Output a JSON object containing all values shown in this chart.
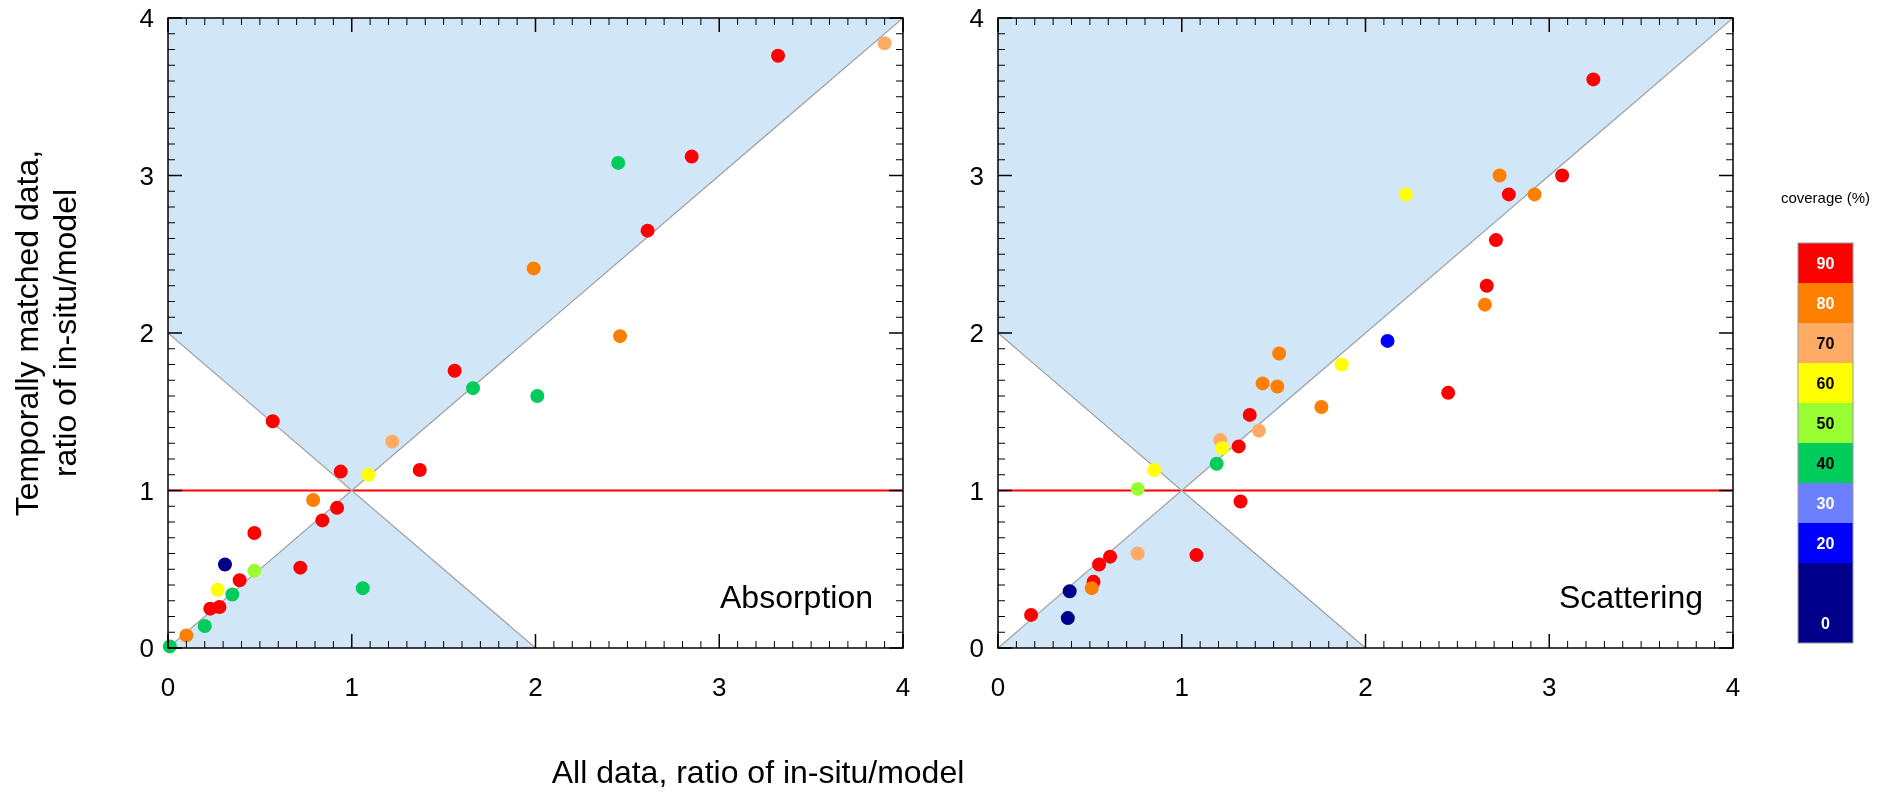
{
  "chart_data": [
    {
      "type": "scatter",
      "xlabel": "All data, ratio of in-situ/model",
      "ylabel": "Temporally matched data,\nratio of in-situ/model",
      "xlim": [
        0,
        4
      ],
      "ylim": [
        0,
        4
      ],
      "xticks": [
        0,
        1,
        2,
        3,
        4
      ],
      "yticks": [
        0,
        1,
        2,
        3,
        4
      ],
      "annotations": [
        "Absorption"
      ],
      "ref_lines": [
        {
          "axis": "y",
          "value": 1,
          "color": "#ff0000"
        }
      ],
      "series": [
        {
          "type": "line",
          "color": "#a0a0a0",
          "x": [
            0,
            1,
            4
          ],
          "values": [
            2,
            1,
            4
          ],
          "lower": [
            2,
            1,
            4
          ],
          "upper": [
            4,
            4,
            4
          ]
        },
        {
          "type": "area",
          "color": "#d1e6f6",
          "x": [
            0,
            1,
            2
          ],
          "values": [
            0,
            1,
            0
          ]
        },
        {
          "type": "scatter",
          "marker": "circle",
          "x": [
            3.9,
            3.32,
            2.45,
            2.85,
            2.61,
            1.99,
            2.46,
            1.56,
            1.66,
            2.01,
            0.57,
            1.22,
            0.94,
            1.09,
            1.37,
            0.79,
            0.92,
            0.84,
            0.47,
            0.31,
            0.47,
            0.72,
            0.39,
            0.27,
            0.35,
            0.23,
            0.28,
            1.06,
            0.2,
            0.1,
            0.01
          ],
          "values": [
            3.84,
            3.76,
            3.08,
            3.12,
            2.65,
            2.41,
            1.98,
            1.76,
            1.65,
            1.6,
            1.44,
            1.31,
            1.12,
            1.1,
            1.13,
            0.94,
            0.89,
            0.81,
            0.73,
            0.53,
            0.49,
            0.51,
            0.43,
            0.37,
            0.34,
            0.25,
            0.26,
            0.38,
            0.14,
            0.08,
            0.01
          ],
          "colors": [
            "#ffab66",
            "#ff0000",
            "#00cc5c",
            "#ff0000",
            "#ff0000",
            "#ff7f00",
            "#ff7f00",
            "#ff0000",
            "#00cc5c",
            "#00cc5c",
            "#ff0000",
            "#ffab66",
            "#ff0000",
            "#ffff00",
            "#ff0000",
            "#ff7f00",
            "#ff0000",
            "#ff0000",
            "#ff0000",
            "#00008b",
            "#99ff33",
            "#ff0000",
            "#ff0000",
            "#ffff00",
            "#00cc5c",
            "#ff0000",
            "#ff0000",
            "#00cc5c",
            "#00cc5c",
            "#ff7f00",
            "#00cc5c"
          ]
        }
      ]
    },
    {
      "type": "scatter",
      "xlim": [
        0,
        4
      ],
      "ylim": [
        0,
        4
      ],
      "xticks": [
        0,
        1,
        2,
        3,
        4
      ],
      "yticks": [
        0,
        1,
        2,
        3,
        4
      ],
      "annotations": [
        "Scattering"
      ],
      "ref_lines": [
        {
          "axis": "y",
          "value": 1,
          "color": "#ff0000"
        }
      ],
      "clabel": "coverage (%)",
      "clim": [
        -5,
        95
      ],
      "cticks": [
        0,
        20,
        30,
        40,
        50,
        60,
        70,
        80,
        90
      ],
      "series": [
        {
          "type": "line",
          "color": "#a0a0a0",
          "x": [
            0,
            1,
            4
          ],
          "values": [
            2,
            1,
            4
          ],
          "lower": [
            2,
            1,
            4
          ],
          "upper": [
            4,
            4,
            4
          ]
        },
        {
          "type": "area",
          "color": "#d1e6f6",
          "x": [
            0,
            1,
            2
          ],
          "values": [
            0,
            1,
            0
          ]
        },
        {
          "type": "scatter",
          "marker": "circle",
          "x": [
            3.24,
            2.73,
            3.07,
            2.22,
            2.78,
            2.92,
            2.71,
            2.66,
            2.65,
            2.12,
            1.87,
            1.53,
            1.44,
            1.52,
            1.76,
            2.45,
            1.37,
            1.42,
            1.21,
            1.22,
            1.31,
            1.19,
            0.85,
            0.76,
            1.32,
            0.76,
            1.08,
            0.61,
            0.55,
            0.52,
            0.51,
            0.39,
            0.38,
            0.18
          ],
          "values": [
            3.61,
            3.0,
            3.0,
            2.88,
            2.88,
            2.88,
            2.59,
            2.3,
            2.18,
            1.95,
            1.8,
            1.87,
            1.68,
            1.66,
            1.53,
            1.62,
            1.48,
            1.38,
            1.32,
            1.27,
            1.28,
            1.17,
            1.13,
            1.01,
            0.93,
            0.6,
            0.59,
            0.58,
            0.53,
            0.42,
            0.38,
            0.36,
            0.19,
            0.21
          ],
          "colors": [
            "#ff0000",
            "#ff7f00",
            "#ff0000",
            "#ffff00",
            "#ff0000",
            "#ff7f00",
            "#ff0000",
            "#ff0000",
            "#ff7f00",
            "#0000ff",
            "#ffff00",
            "#ff7f00",
            "#ff7f00",
            "#ff7f00",
            "#ff7f00",
            "#ff0000",
            "#ff0000",
            "#ffab66",
            "#ffab66",
            "#ffff00",
            "#ff0000",
            "#00cc5c",
            "#ffff00",
            "#99ff33",
            "#ff0000",
            "#ffab66",
            "#ff0000",
            "#ff0000",
            "#ff0000",
            "#ff0000",
            "#ff7f00",
            "#00008b",
            "#00008b",
            "#ff0000"
          ]
        }
      ]
    }
  ]
}
